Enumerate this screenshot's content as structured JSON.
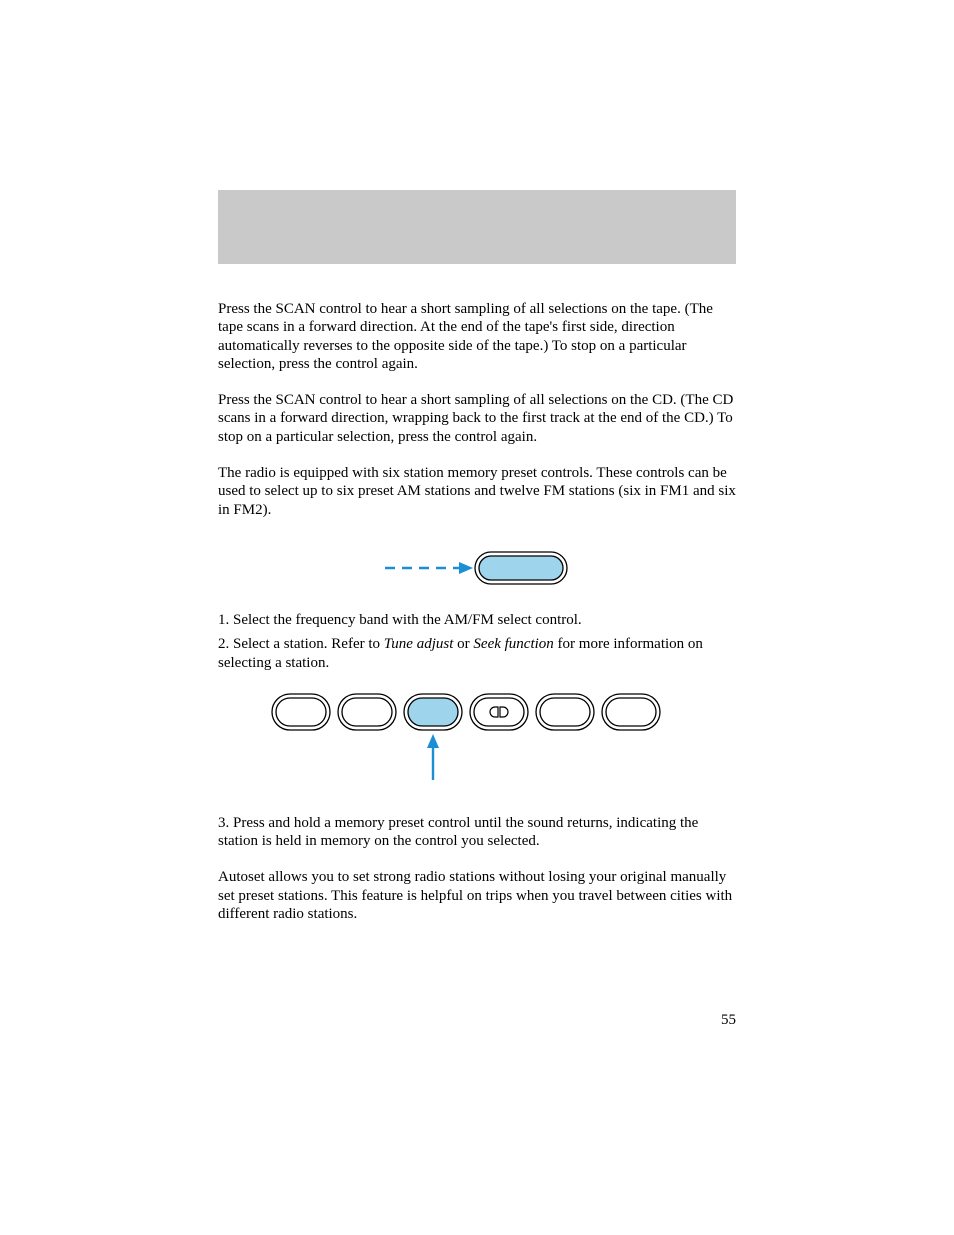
{
  "page": {
    "number": "55",
    "header_bar_color": "#c9c9c9",
    "text_color": "#000000"
  },
  "paragraphs": {
    "tape_scan": "Press the SCAN control to hear a short sampling of all selections on the tape. (The tape scans in a forward direction. At the end of the tape's first side, direction automatically reverses to the opposite side of the tape.) To stop on a particular selection, press the control again.",
    "cd_scan": "Press the SCAN control to hear a short sampling of all selections on the CD. (The CD scans in a forward direction, wrapping back to the first track at the end of the CD.) To stop on a particular selection, press the control again.",
    "presets_intro": "The radio is equipped with six station memory preset controls. These controls can be used to select up to six preset AM stations and twelve FM stations (six in FM1 and six in FM2).",
    "step1": "1. Select the frequency band with the AM/FM select control.",
    "step2_a": "2. Select a station. Refer to ",
    "step2_tune": "Tune adjust",
    "step2_or": " or ",
    "step2_seek": "Seek function",
    "step2_b": " for more information on selecting a station.",
    "step3": "3. Press and hold a memory preset control until the sound returns, indicating the station is held in memory on the control you selected.",
    "autoset": "Autoset allows you to set strong radio stations without losing your original manually set preset stations. This feature is helpful on trips when you travel between cities with different radio stations."
  },
  "diagram_band": {
    "arrow_color": "#1a8fd6",
    "button_fill": "#9fd4ed",
    "button_stroke": "#000000",
    "button_width": 92,
    "button_height": 32,
    "button_rx": 16
  },
  "diagram_presets": {
    "count": 6,
    "highlight_index": 2,
    "dolby_index": 3,
    "button_fill_off": "#ffffff",
    "button_fill_on": "#9fd4ed",
    "button_stroke": "#000000",
    "arrow_color": "#1a8fd6",
    "button_width": 58,
    "button_height": 36,
    "button_rx": 18,
    "gap": 8
  }
}
